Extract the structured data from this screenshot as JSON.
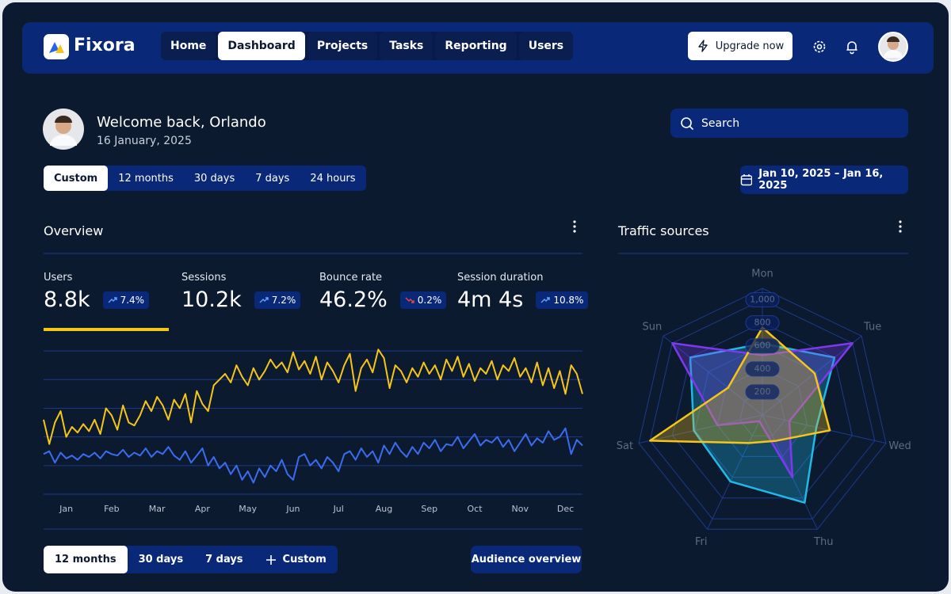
{
  "nav": {
    "brand": "Fixora",
    "items": [
      "Home",
      "Dashboard",
      "Projects",
      "Tasks",
      "Reporting",
      "Users"
    ],
    "active": 1,
    "upgrade": "Upgrade now"
  },
  "welcome": {
    "title": "Welcome back, Orlando",
    "date": "16 January, 2025"
  },
  "search": {
    "placeholder": "Search"
  },
  "range_tabs": {
    "items": [
      "Custom",
      "12 months",
      "30 days",
      "7 days",
      "24 hours"
    ],
    "active": 0
  },
  "date_range": "Jan 10, 2025 – Jan 16, 2025",
  "overview": {
    "title": "Overview",
    "active_metric": 0,
    "metrics": [
      {
        "label": "Users",
        "value": "8.8k",
        "change": "7.4%",
        "trend": "up"
      },
      {
        "label": "Sessions",
        "value": "10.2k",
        "change": "7.2%",
        "trend": "up"
      },
      {
        "label": "Bounce rate",
        "value": "46.2%",
        "change": "0.2%",
        "trend": "down"
      },
      {
        "label": "Session duration",
        "value": "4m 4s",
        "change": "10.8%",
        "trend": "up"
      }
    ],
    "chart_data": {
      "type": "line",
      "categories": [
        null,
        null,
        null,
        null,
        "Jan",
        null,
        null,
        null,
        null,
        null,
        null,
        null,
        "Feb",
        null,
        null,
        null,
        null,
        null,
        null,
        null,
        "Mar",
        null,
        null,
        null,
        null,
        null,
        null,
        null,
        "Apr",
        null,
        null,
        null,
        null,
        null,
        null,
        null,
        "May",
        null,
        null,
        null,
        null,
        null,
        null,
        null,
        "Jun",
        null,
        null,
        null,
        null,
        null,
        null,
        null,
        "Jul",
        null,
        null,
        null,
        null,
        null,
        null,
        null,
        "Aug",
        null,
        null,
        null,
        null,
        null,
        null,
        null,
        "Sep",
        null,
        null,
        null,
        null,
        null,
        null,
        null,
        "Oct",
        null,
        null,
        null,
        null,
        null,
        null,
        null,
        "Nov",
        null,
        null,
        null,
        null,
        null,
        null,
        null,
        "Dec",
        null,
        null,
        null
      ],
      "series": [
        {
          "color": "#f5c518",
          "values": [
            52,
            35,
            50,
            58,
            40,
            47,
            43,
            49,
            44,
            52,
            42,
            60,
            55,
            45,
            62,
            50,
            48,
            55,
            65,
            58,
            68,
            62,
            52,
            66,
            60,
            70,
            50,
            72,
            63,
            58,
            76,
            80,
            84,
            78,
            90,
            82,
            76,
            88,
            80,
            86,
            94,
            88,
            92,
            85,
            99,
            87,
            93,
            84,
            96,
            80,
            92,
            86,
            78,
            90,
            98,
            72,
            88,
            94,
            85,
            101,
            95,
            74,
            90,
            86,
            78,
            88,
            82,
            92,
            84,
            90,
            80,
            94,
            86,
            96,
            82,
            91,
            79,
            88,
            84,
            93,
            80,
            90,
            86,
            95,
            82,
            88,
            78,
            92,
            76,
            88,
            74,
            86,
            70,
            90,
            84,
            70
          ]
        },
        {
          "color": "#3b6cf0",
          "values": [
            28,
            30,
            22,
            29,
            25,
            27,
            24,
            28,
            26,
            29,
            25,
            30,
            28,
            27,
            31,
            26,
            29,
            27,
            32,
            26,
            30,
            28,
            33,
            27,
            24,
            30,
            22,
            27,
            32,
            20,
            26,
            18,
            22,
            14,
            20,
            10,
            16,
            8,
            18,
            12,
            20,
            16,
            24,
            14,
            10,
            26,
            28,
            20,
            24,
            18,
            26,
            22,
            16,
            28,
            30,
            24,
            32,
            26,
            30,
            22,
            34,
            28,
            36,
            30,
            26,
            33,
            28,
            36,
            32,
            38,
            30,
            35,
            34,
            40,
            32,
            37,
            42,
            34,
            38,
            36,
            40,
            33,
            38,
            30,
            36,
            42,
            34,
            39,
            36,
            44,
            38,
            40,
            46,
            28,
            38,
            34
          ]
        }
      ],
      "ylim": [
        0,
        110
      ],
      "yticks": [
        0,
        20,
        40,
        60,
        80,
        100
      ],
      "grid": true
    }
  },
  "footer_tabs": {
    "items": [
      "12 months",
      "30 days",
      "7 days",
      "Custom"
    ],
    "active": 0
  },
  "audience": "Audience overview",
  "traffic": {
    "title": "Traffic sources",
    "chart_data": {
      "type": "radar",
      "axes": [
        "Mon",
        "Tue",
        "Wed",
        "Thu",
        "Fri",
        "Sat",
        "Sun"
      ],
      "rlim": [
        0,
        1100
      ],
      "rticks": [
        200,
        400,
        600,
        800,
        {
          "value": 1000,
          "label": "1,000"
        }
      ],
      "series": [
        {
          "color": "#22b8e6",
          "values": [
            620,
            800,
            480,
            845,
            640,
            610,
            800
          ]
        },
        {
          "color": "#7c3aed",
          "values": [
            520,
            1000,
            240,
            600,
            60,
            400,
            1000
          ]
        },
        {
          "color": "#f5c518",
          "values": [
            760,
            580,
            600,
            250,
            270,
            1000,
            380
          ]
        }
      ]
    }
  }
}
